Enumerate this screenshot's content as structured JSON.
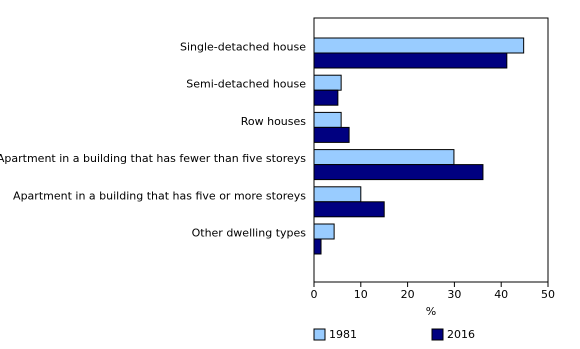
{
  "chart_data": {
    "type": "barh",
    "categories": [
      "Single-detached house",
      "Semi-detached house",
      "Row houses",
      "Apartment in a building that has fewer than five storeys",
      "Apartment in a building that has five or more storeys",
      "Other dwelling types"
    ],
    "series": [
      {
        "name": "1981",
        "color": "#99ccff",
        "values": [
          44.8,
          5.8,
          5.8,
          29.9,
          10.0,
          4.3
        ]
      },
      {
        "name": "2016",
        "color": "#000080",
        "values": [
          41.2,
          5.1,
          7.5,
          36.1,
          15.0,
          1.5
        ]
      }
    ],
    "xlabel": "%",
    "xlim": [
      0,
      50
    ],
    "xticks": [
      0,
      10,
      20,
      30,
      40,
      50
    ]
  }
}
